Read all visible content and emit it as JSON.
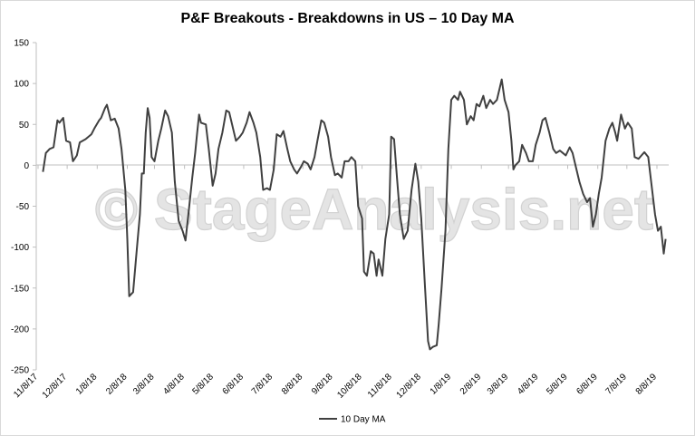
{
  "chart_data": {
    "type": "line",
    "title": "P&F Breakouts - Breakdowns in US – 10 Day MA",
    "watermark": "© StageAnalysis.net",
    "ylim": [
      -250,
      150
    ],
    "yticks": [
      150,
      100,
      50,
      0,
      -50,
      -100,
      -150,
      -200,
      -250
    ],
    "x_tick_labels": [
      "11/8/17",
      "12/8/17",
      "1/8/18",
      "2/8/18",
      "3/8/18",
      "4/8/18",
      "5/8/18",
      "6/8/18",
      "7/8/18",
      "8/8/18",
      "9/8/18",
      "10/8/18",
      "11/8/18",
      "12/8/18",
      "1/8/19",
      "2/8/19",
      "3/8/19",
      "4/8/19",
      "5/8/19",
      "6/8/19",
      "7/8/19",
      "8/8/19"
    ],
    "grid": false,
    "legend_position": "bottom",
    "line_color": "#404040",
    "series": [
      {
        "name": "10 Day MA",
        "points": [
          [
            "2017-11-13",
            -8
          ],
          [
            "2017-11-16",
            15
          ],
          [
            "2017-11-20",
            20
          ],
          [
            "2017-11-24",
            22
          ],
          [
            "2017-11-28",
            55
          ],
          [
            "2017-11-30",
            52
          ],
          [
            "2017-12-04",
            58
          ],
          [
            "2017-12-07",
            30
          ],
          [
            "2017-12-11",
            28
          ],
          [
            "2017-12-14",
            5
          ],
          [
            "2017-12-18",
            12
          ],
          [
            "2017-12-21",
            28
          ],
          [
            "2017-12-27",
            32
          ],
          [
            "2018-01-02",
            38
          ],
          [
            "2018-01-05",
            45
          ],
          [
            "2018-01-10",
            55
          ],
          [
            "2018-01-12",
            58
          ],
          [
            "2018-01-16",
            70
          ],
          [
            "2018-01-18",
            74
          ],
          [
            "2018-01-22",
            55
          ],
          [
            "2018-01-26",
            57
          ],
          [
            "2018-01-30",
            45
          ],
          [
            "2018-02-02",
            20
          ],
          [
            "2018-02-06",
            -30
          ],
          [
            "2018-02-08",
            -90
          ],
          [
            "2018-02-10",
            -160
          ],
          [
            "2018-02-14",
            -155
          ],
          [
            "2018-02-18",
            -100
          ],
          [
            "2018-02-21",
            -60
          ],
          [
            "2018-02-23",
            -10
          ],
          [
            "2018-02-25",
            -10
          ],
          [
            "2018-02-27",
            40
          ],
          [
            "2018-03-01",
            70
          ],
          [
            "2018-03-03",
            58
          ],
          [
            "2018-03-05",
            10
          ],
          [
            "2018-03-08",
            5
          ],
          [
            "2018-03-12",
            30
          ],
          [
            "2018-03-15",
            45
          ],
          [
            "2018-03-19",
            67
          ],
          [
            "2018-03-22",
            60
          ],
          [
            "2018-03-26",
            40
          ],
          [
            "2018-03-29",
            -20
          ],
          [
            "2018-04-02",
            -68
          ],
          [
            "2018-04-06",
            -80
          ],
          [
            "2018-04-09",
            -92
          ],
          [
            "2018-04-12",
            -60
          ],
          [
            "2018-04-16",
            -15
          ],
          [
            "2018-04-19",
            15
          ],
          [
            "2018-04-21",
            40
          ],
          [
            "2018-04-23",
            62
          ],
          [
            "2018-04-25",
            52
          ],
          [
            "2018-04-30",
            50
          ],
          [
            "2018-05-03",
            20
          ],
          [
            "2018-05-07",
            -25
          ],
          [
            "2018-05-10",
            -10
          ],
          [
            "2018-05-13",
            20
          ],
          [
            "2018-05-17",
            40
          ],
          [
            "2018-05-21",
            67
          ],
          [
            "2018-05-24",
            65
          ],
          [
            "2018-05-28",
            45
          ],
          [
            "2018-05-31",
            30
          ],
          [
            "2018-06-04",
            35
          ],
          [
            "2018-06-07",
            40
          ],
          [
            "2018-06-11",
            52
          ],
          [
            "2018-06-14",
            65
          ],
          [
            "2018-06-18",
            52
          ],
          [
            "2018-06-21",
            40
          ],
          [
            "2018-06-25",
            10
          ],
          [
            "2018-06-28",
            -30
          ],
          [
            "2018-07-02",
            -28
          ],
          [
            "2018-07-05",
            -30
          ],
          [
            "2018-07-09",
            -5
          ],
          [
            "2018-07-12",
            38
          ],
          [
            "2018-07-16",
            35
          ],
          [
            "2018-07-19",
            42
          ],
          [
            "2018-07-23",
            20
          ],
          [
            "2018-07-26",
            5
          ],
          [
            "2018-07-30",
            -5
          ],
          [
            "2018-08-02",
            -10
          ],
          [
            "2018-08-06",
            -2
          ],
          [
            "2018-08-09",
            5
          ],
          [
            "2018-08-13",
            2
          ],
          [
            "2018-08-16",
            -5
          ],
          [
            "2018-08-20",
            10
          ],
          [
            "2018-08-23",
            30
          ],
          [
            "2018-08-27",
            55
          ],
          [
            "2018-08-30",
            52
          ],
          [
            "2018-09-03",
            35
          ],
          [
            "2018-09-06",
            10
          ],
          [
            "2018-09-10",
            -12
          ],
          [
            "2018-09-13",
            -10
          ],
          [
            "2018-09-17",
            -15
          ],
          [
            "2018-09-20",
            5
          ],
          [
            "2018-09-24",
            5
          ],
          [
            "2018-09-27",
            10
          ],
          [
            "2018-10-01",
            5
          ],
          [
            "2018-10-04",
            -50
          ],
          [
            "2018-10-08",
            -65
          ],
          [
            "2018-10-10",
            -130
          ],
          [
            "2018-10-13",
            -135
          ],
          [
            "2018-10-17",
            -105
          ],
          [
            "2018-10-20",
            -108
          ],
          [
            "2018-10-23",
            -135
          ],
          [
            "2018-10-25",
            -115
          ],
          [
            "2018-10-29",
            -135
          ],
          [
            "2018-11-01",
            -90
          ],
          [
            "2018-11-05",
            -60
          ],
          [
            "2018-11-07",
            35
          ],
          [
            "2018-11-10",
            32
          ],
          [
            "2018-11-13",
            -15
          ],
          [
            "2018-11-16",
            -60
          ],
          [
            "2018-11-20",
            -90
          ],
          [
            "2018-11-24",
            -80
          ],
          [
            "2018-11-28",
            -30
          ],
          [
            "2018-12-02",
            2
          ],
          [
            "2018-12-05",
            -20
          ],
          [
            "2018-12-08",
            -65
          ],
          [
            "2018-12-12",
            -150
          ],
          [
            "2018-12-15",
            -215
          ],
          [
            "2018-12-17",
            -225
          ],
          [
            "2018-12-20",
            -222
          ],
          [
            "2018-12-24",
            -220
          ],
          [
            "2018-12-26",
            -195
          ],
          [
            "2018-12-29",
            -150
          ],
          [
            "2019-01-02",
            -80
          ],
          [
            "2019-01-05",
            20
          ],
          [
            "2019-01-08",
            80
          ],
          [
            "2019-01-11",
            85
          ],
          [
            "2019-01-15",
            80
          ],
          [
            "2019-01-17",
            90
          ],
          [
            "2019-01-21",
            80
          ],
          [
            "2019-01-24",
            50
          ],
          [
            "2019-01-28",
            60
          ],
          [
            "2019-01-31",
            55
          ],
          [
            "2019-02-03",
            75
          ],
          [
            "2019-02-06",
            72
          ],
          [
            "2019-02-10",
            85
          ],
          [
            "2019-02-13",
            70
          ],
          [
            "2019-02-17",
            80
          ],
          [
            "2019-02-20",
            75
          ],
          [
            "2019-02-24",
            80
          ],
          [
            "2019-02-27",
            95
          ],
          [
            "2019-03-01",
            105
          ],
          [
            "2019-03-04",
            80
          ],
          [
            "2019-03-08",
            65
          ],
          [
            "2019-03-11",
            30
          ],
          [
            "2019-03-13",
            -5
          ],
          [
            "2019-03-15",
            0
          ],
          [
            "2019-03-19",
            5
          ],
          [
            "2019-03-22",
            25
          ],
          [
            "2019-03-26",
            15
          ],
          [
            "2019-03-29",
            5
          ],
          [
            "2019-04-02",
            5
          ],
          [
            "2019-04-05",
            25
          ],
          [
            "2019-04-09",
            40
          ],
          [
            "2019-04-12",
            55
          ],
          [
            "2019-04-15",
            58
          ],
          [
            "2019-04-19",
            40
          ],
          [
            "2019-04-23",
            20
          ],
          [
            "2019-04-26",
            15
          ],
          [
            "2019-04-30",
            18
          ],
          [
            "2019-05-03",
            15
          ],
          [
            "2019-05-06",
            12
          ],
          [
            "2019-05-10",
            22
          ],
          [
            "2019-05-13",
            15
          ],
          [
            "2019-05-16",
            0
          ],
          [
            "2019-05-20",
            -20
          ],
          [
            "2019-05-24",
            -35
          ],
          [
            "2019-05-28",
            -45
          ],
          [
            "2019-05-31",
            -40
          ],
          [
            "2019-06-03",
            -75
          ],
          [
            "2019-06-06",
            -60
          ],
          [
            "2019-06-09",
            -35
          ],
          [
            "2019-06-12",
            -15
          ],
          [
            "2019-06-16",
            30
          ],
          [
            "2019-06-20",
            45
          ],
          [
            "2019-06-23",
            52
          ],
          [
            "2019-06-26",
            40
          ],
          [
            "2019-06-28",
            30
          ],
          [
            "2019-07-02",
            62
          ],
          [
            "2019-07-06",
            45
          ],
          [
            "2019-07-09",
            52
          ],
          [
            "2019-07-13",
            45
          ],
          [
            "2019-07-16",
            10
          ],
          [
            "2019-07-20",
            8
          ],
          [
            "2019-07-23",
            12
          ],
          [
            "2019-07-26",
            16
          ],
          [
            "2019-07-30",
            10
          ],
          [
            "2019-08-02",
            -20
          ],
          [
            "2019-08-06",
            -60
          ],
          [
            "2019-08-09",
            -80
          ],
          [
            "2019-08-12",
            -75
          ],
          [
            "2019-08-15",
            -108
          ],
          [
            "2019-08-17",
            -90
          ]
        ]
      }
    ]
  }
}
